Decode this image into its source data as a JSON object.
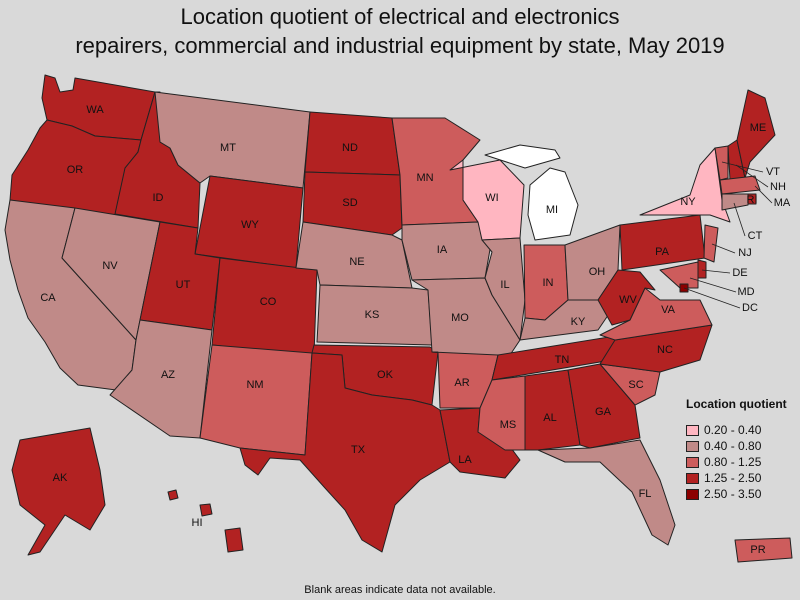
{
  "title_lines": [
    "Location quotient of electrical and electronics",
    "repairers, commercial and industrial equipment by state, May 2019"
  ],
  "legend": {
    "title": "Location quotient",
    "classes": [
      {
        "label": "0.20 - 0.40",
        "color": "#ffb6c1"
      },
      {
        "label": "0.40 - 0.80",
        "color": "#c08a88"
      },
      {
        "label": "0.80 - 1.25",
        "color": "#cd5c5c"
      },
      {
        "label": "1.25 - 2.50",
        "color": "#b22222"
      },
      {
        "label": "2.50 - 3.50",
        "color": "#8b0000"
      }
    ]
  },
  "no_data_color": "#ffffff",
  "footnote": "Blank areas indicate data not available.",
  "states": [
    {
      "abbr": "WA",
      "cls": 3
    },
    {
      "abbr": "OR",
      "cls": 3
    },
    {
      "abbr": "CA",
      "cls": 1
    },
    {
      "abbr": "NV",
      "cls": 1
    },
    {
      "abbr": "ID",
      "cls": 3
    },
    {
      "abbr": "MT",
      "cls": 1
    },
    {
      "abbr": "WY",
      "cls": 3
    },
    {
      "abbr": "UT",
      "cls": 3
    },
    {
      "abbr": "AZ",
      "cls": 1
    },
    {
      "abbr": "CO",
      "cls": 3
    },
    {
      "abbr": "NM",
      "cls": 2
    },
    {
      "abbr": "ND",
      "cls": 3
    },
    {
      "abbr": "SD",
      "cls": 3
    },
    {
      "abbr": "NE",
      "cls": 1
    },
    {
      "abbr": "KS",
      "cls": 1
    },
    {
      "abbr": "OK",
      "cls": 3
    },
    {
      "abbr": "TX",
      "cls": 3
    },
    {
      "abbr": "MN",
      "cls": 2
    },
    {
      "abbr": "IA",
      "cls": 1
    },
    {
      "abbr": "MO",
      "cls": 1
    },
    {
      "abbr": "AR",
      "cls": 2
    },
    {
      "abbr": "LA",
      "cls": 3
    },
    {
      "abbr": "WI",
      "cls": 0
    },
    {
      "abbr": "MI",
      "cls": null
    },
    {
      "abbr": "IL",
      "cls": 1
    },
    {
      "abbr": "IN",
      "cls": 2
    },
    {
      "abbr": "OH",
      "cls": 1
    },
    {
      "abbr": "KY",
      "cls": 1
    },
    {
      "abbr": "TN",
      "cls": 3
    },
    {
      "abbr": "MS",
      "cls": 2
    },
    {
      "abbr": "AL",
      "cls": 3
    },
    {
      "abbr": "GA",
      "cls": 3
    },
    {
      "abbr": "FL",
      "cls": 1
    },
    {
      "abbr": "SC",
      "cls": 2
    },
    {
      "abbr": "NC",
      "cls": 3
    },
    {
      "abbr": "VA",
      "cls": 2
    },
    {
      "abbr": "WV",
      "cls": 3
    },
    {
      "abbr": "PA",
      "cls": 3
    },
    {
      "abbr": "NY",
      "cls": 0
    },
    {
      "abbr": "VT",
      "cls": 2
    },
    {
      "abbr": "NH",
      "cls": 3
    },
    {
      "abbr": "ME",
      "cls": 3
    },
    {
      "abbr": "MA",
      "cls": 2
    },
    {
      "abbr": "RI",
      "cls": 3
    },
    {
      "abbr": "CT",
      "cls": 1
    },
    {
      "abbr": "NJ",
      "cls": 2
    },
    {
      "abbr": "DE",
      "cls": 3
    },
    {
      "abbr": "MD",
      "cls": 2
    },
    {
      "abbr": "DC",
      "cls": 4
    },
    {
      "abbr": "AK",
      "cls": 3
    },
    {
      "abbr": "HI",
      "cls": 3
    },
    {
      "abbr": "PR",
      "cls": 2
    }
  ]
}
